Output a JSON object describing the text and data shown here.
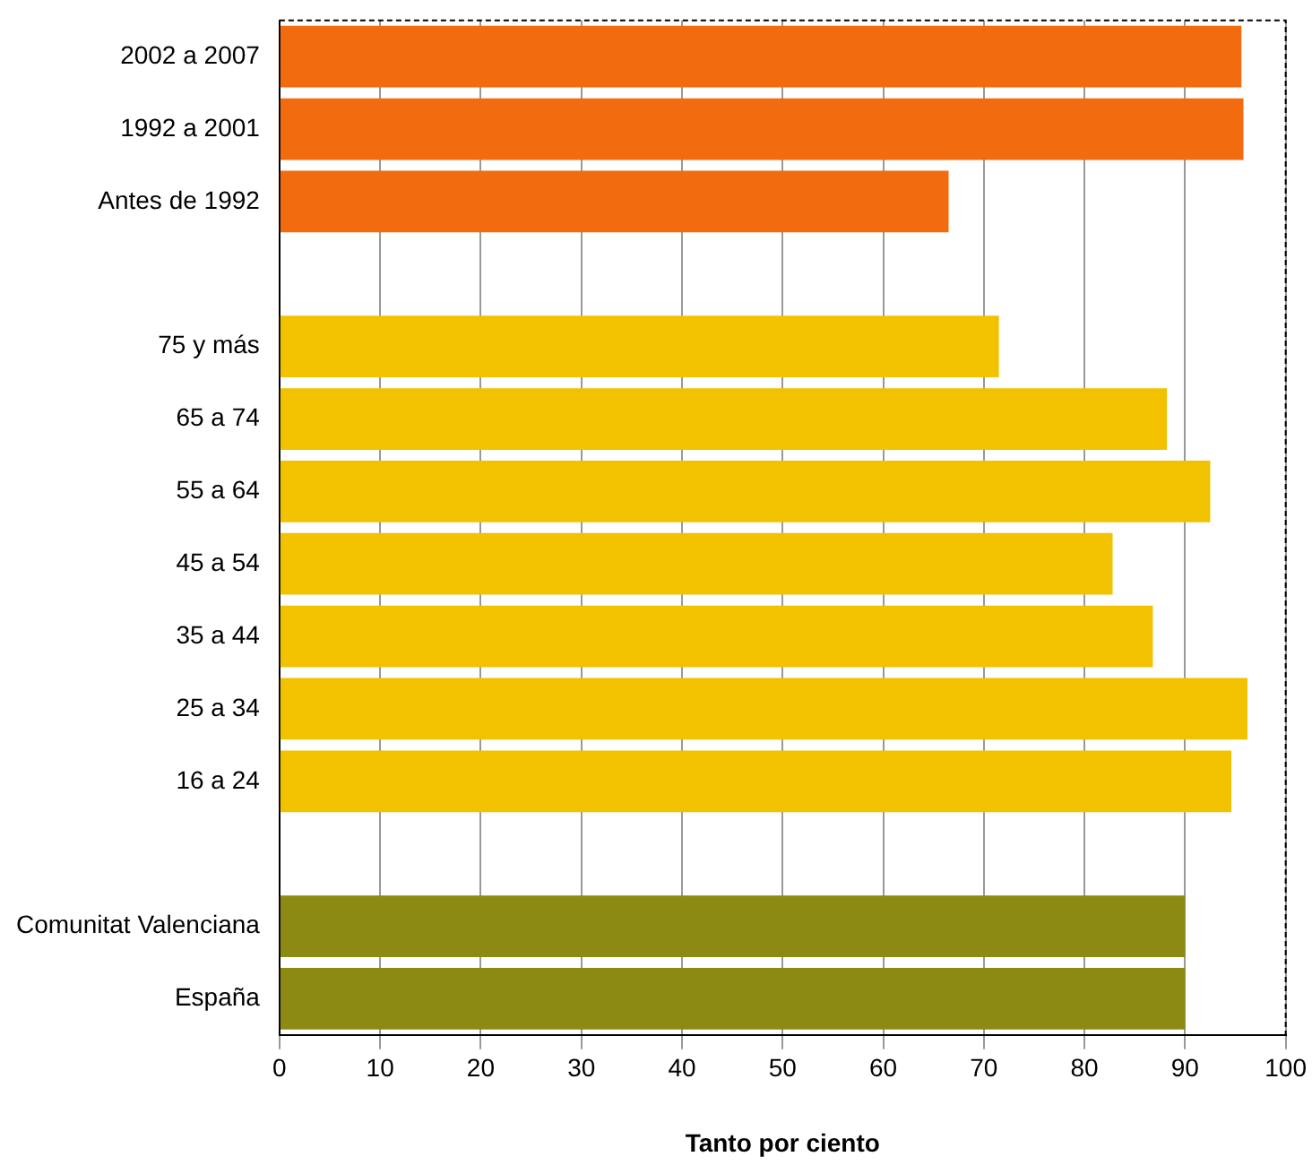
{
  "chart_data": {
    "type": "bar",
    "orientation": "horizontal",
    "xlabel": "Tanto por ciento",
    "categories": [
      "2002 a 2007",
      "1992 a 2001",
      "Antes de 1992",
      null,
      "75 y más",
      "65 a 74",
      "55 a 64",
      "45 a 54",
      "35 a 44",
      "25 a 34",
      "16 a 24",
      null,
      "Comunitat Valenciana",
      "España"
    ],
    "values": [
      95.6,
      95.8,
      66.5,
      null,
      71.5,
      88.2,
      92.5,
      82.8,
      86.8,
      96.2,
      94.6,
      null,
      90.0,
      90.0
    ],
    "colors": [
      "#f26b0f",
      "#f26b0f",
      "#f26b0f",
      "#ffffff",
      "#f2c200",
      "#f2c200",
      "#f2c200",
      "#f2c200",
      "#f2c200",
      "#f2c200",
      "#f2c200",
      "#ffffff",
      "#8c8a12",
      "#8c8a12"
    ],
    "xlim": [
      0,
      100
    ],
    "xticks": [
      0,
      10,
      20,
      30,
      40,
      50,
      60,
      70,
      80,
      90,
      100
    ],
    "grid": "x",
    "legend": false
  }
}
